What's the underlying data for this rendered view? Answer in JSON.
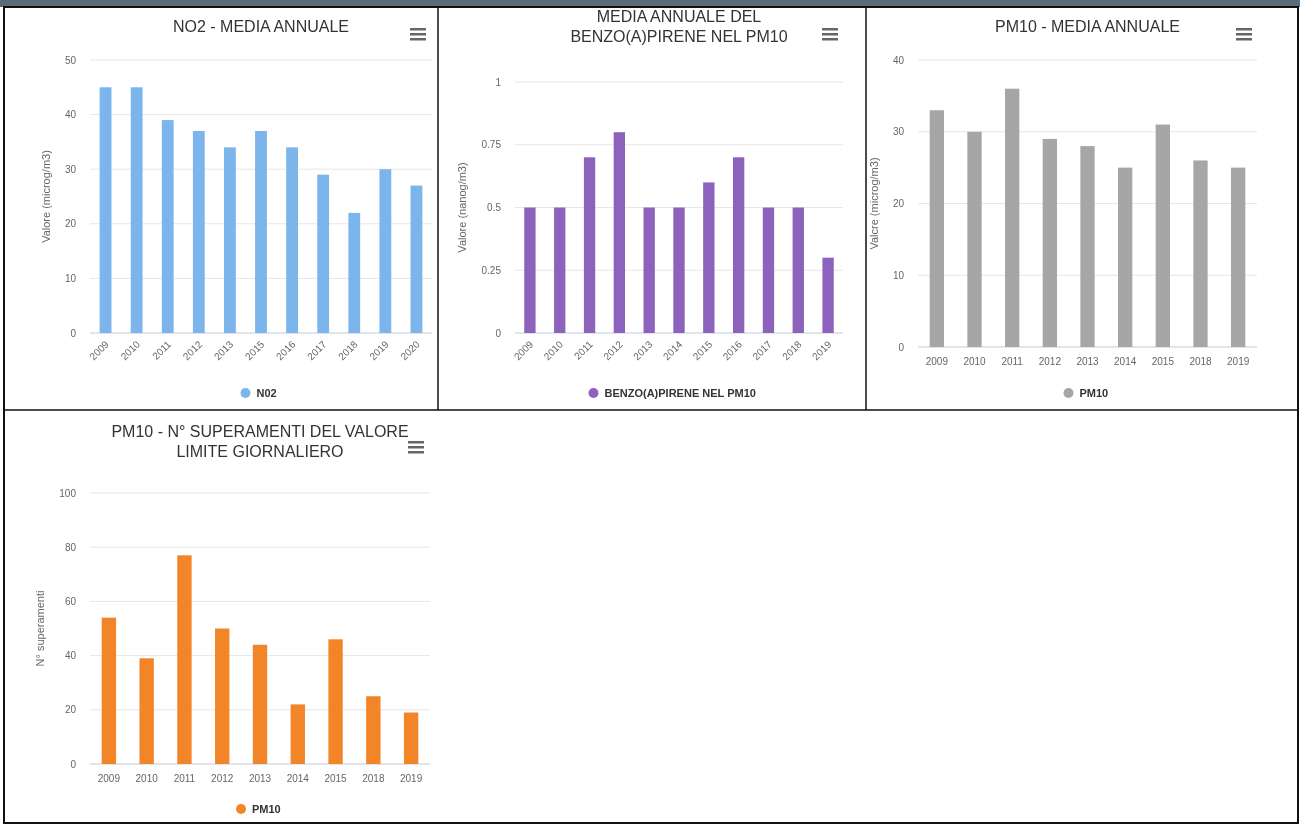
{
  "chart_data": [
    {
      "type": "bar",
      "title": "NO2 - MEDIA ANNUALE",
      "ylabel": "Valore (microg/m3)",
      "categories": [
        "2009",
        "2010",
        "2011",
        "2012",
        "2013",
        "2015",
        "2016",
        "2017",
        "2018",
        "2019",
        "2020"
      ],
      "series": [
        {
          "name": "N02",
          "color": "#7cb5ec",
          "values": [
            45,
            45,
            39,
            37,
            34,
            37,
            34,
            29,
            22,
            30,
            27
          ]
        }
      ],
      "ylim": [
        0,
        50
      ],
      "yticks": [
        0,
        10,
        20,
        30,
        40,
        50
      ],
      "grid": "y",
      "legend": "bottom"
    },
    {
      "type": "bar",
      "title": "MEDIA ANNUALE DEL BENZO(A)PIRENE NEL PM10",
      "ylabel": "Valore (nanog/m3)",
      "categories": [
        "2009",
        "2010",
        "2011",
        "2012",
        "2013",
        "2014",
        "2015",
        "2016",
        "2017",
        "2018",
        "2019"
      ],
      "series": [
        {
          "name": "BENZO(A)PIRENE NEL PM10",
          "color": "#8c62bd",
          "values": [
            0.5,
            0.5,
            0.7,
            0.8,
            0.5,
            0.5,
            0.6,
            0.7,
            0.5,
            0.5,
            0.3
          ]
        }
      ],
      "ylim": [
        0,
        1
      ],
      "yticks": [
        0,
        0.25,
        0.5,
        0.75,
        1
      ],
      "grid": "y",
      "legend": "bottom"
    },
    {
      "type": "bar",
      "title": "PM10 - MEDIA ANNUALE",
      "ylabel": "Valcre (microg/m3)",
      "categories": [
        "2009",
        "2010",
        "2011",
        "2012",
        "2013",
        "2014",
        "2015",
        "2018",
        "2019"
      ],
      "series": [
        {
          "name": "PM10",
          "color": "#a6a6a6",
          "values": [
            33,
            30,
            36,
            29,
            28,
            25,
            31,
            26,
            25
          ]
        }
      ],
      "ylim": [
        0,
        40
      ],
      "yticks": [
        0,
        10,
        20,
        30,
        40
      ],
      "grid": "y",
      "legend": "bottom"
    },
    {
      "type": "bar",
      "title": "PM10 - N° SUPERAMENTI DEL VALORE LIMITE GIORNALIERO",
      "ylabel": "N° superamenti",
      "categories": [
        "2009",
        "2010",
        "2011",
        "2012",
        "2013",
        "2014",
        "2015",
        "2018",
        "2019"
      ],
      "series": [
        {
          "name": "PM10",
          "color": "#f28527",
          "values": [
            54,
            39,
            77,
            50,
            44,
            22,
            46,
            25,
            19
          ]
        }
      ],
      "ylim": [
        0,
        100
      ],
      "yticks": [
        0,
        20,
        40,
        60,
        80,
        100
      ],
      "grid": "y",
      "legend": "bottom"
    }
  ]
}
